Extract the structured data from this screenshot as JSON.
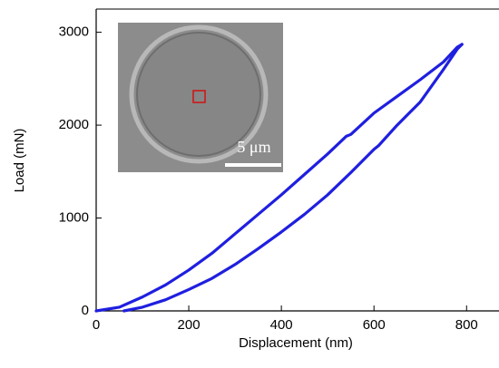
{
  "chart_data": {
    "type": "line",
    "xlabel": "Displacement (nm)",
    "ylabel": "Load (mN)",
    "xlim": [
      0,
      870
    ],
    "ylim": [
      0,
      3250
    ],
    "xticks": [
      0,
      200,
      400,
      600,
      800
    ],
    "yticks": [
      0,
      1000,
      2000,
      3000
    ],
    "annotations": [
      "5 μm"
    ],
    "series": [
      {
        "color": "#1f1fe0",
        "x": [
          0,
          50,
          100,
          150,
          200,
          250,
          300,
          350,
          400,
          450,
          500,
          540,
          550,
          600,
          650,
          700,
          750,
          780,
          790
        ],
        "values": [
          0,
          40,
          150,
          280,
          440,
          620,
          830,
          1040,
          1250,
          1470,
          1690,
          1880,
          1900,
          2130,
          2310,
          2490,
          2680,
          2840,
          2870
        ]
      },
      {
        "color": "#1f1fe0",
        "x": [
          790,
          780,
          750,
          700,
          650,
          610,
          600,
          550,
          500,
          450,
          400,
          350,
          300,
          250,
          200,
          150,
          100,
          60
        ],
        "values": [
          2870,
          2820,
          2600,
          2250,
          2000,
          1780,
          1740,
          1490,
          1250,
          1040,
          850,
          670,
          500,
          350,
          230,
          120,
          40,
          0
        ]
      }
    ]
  }
}
